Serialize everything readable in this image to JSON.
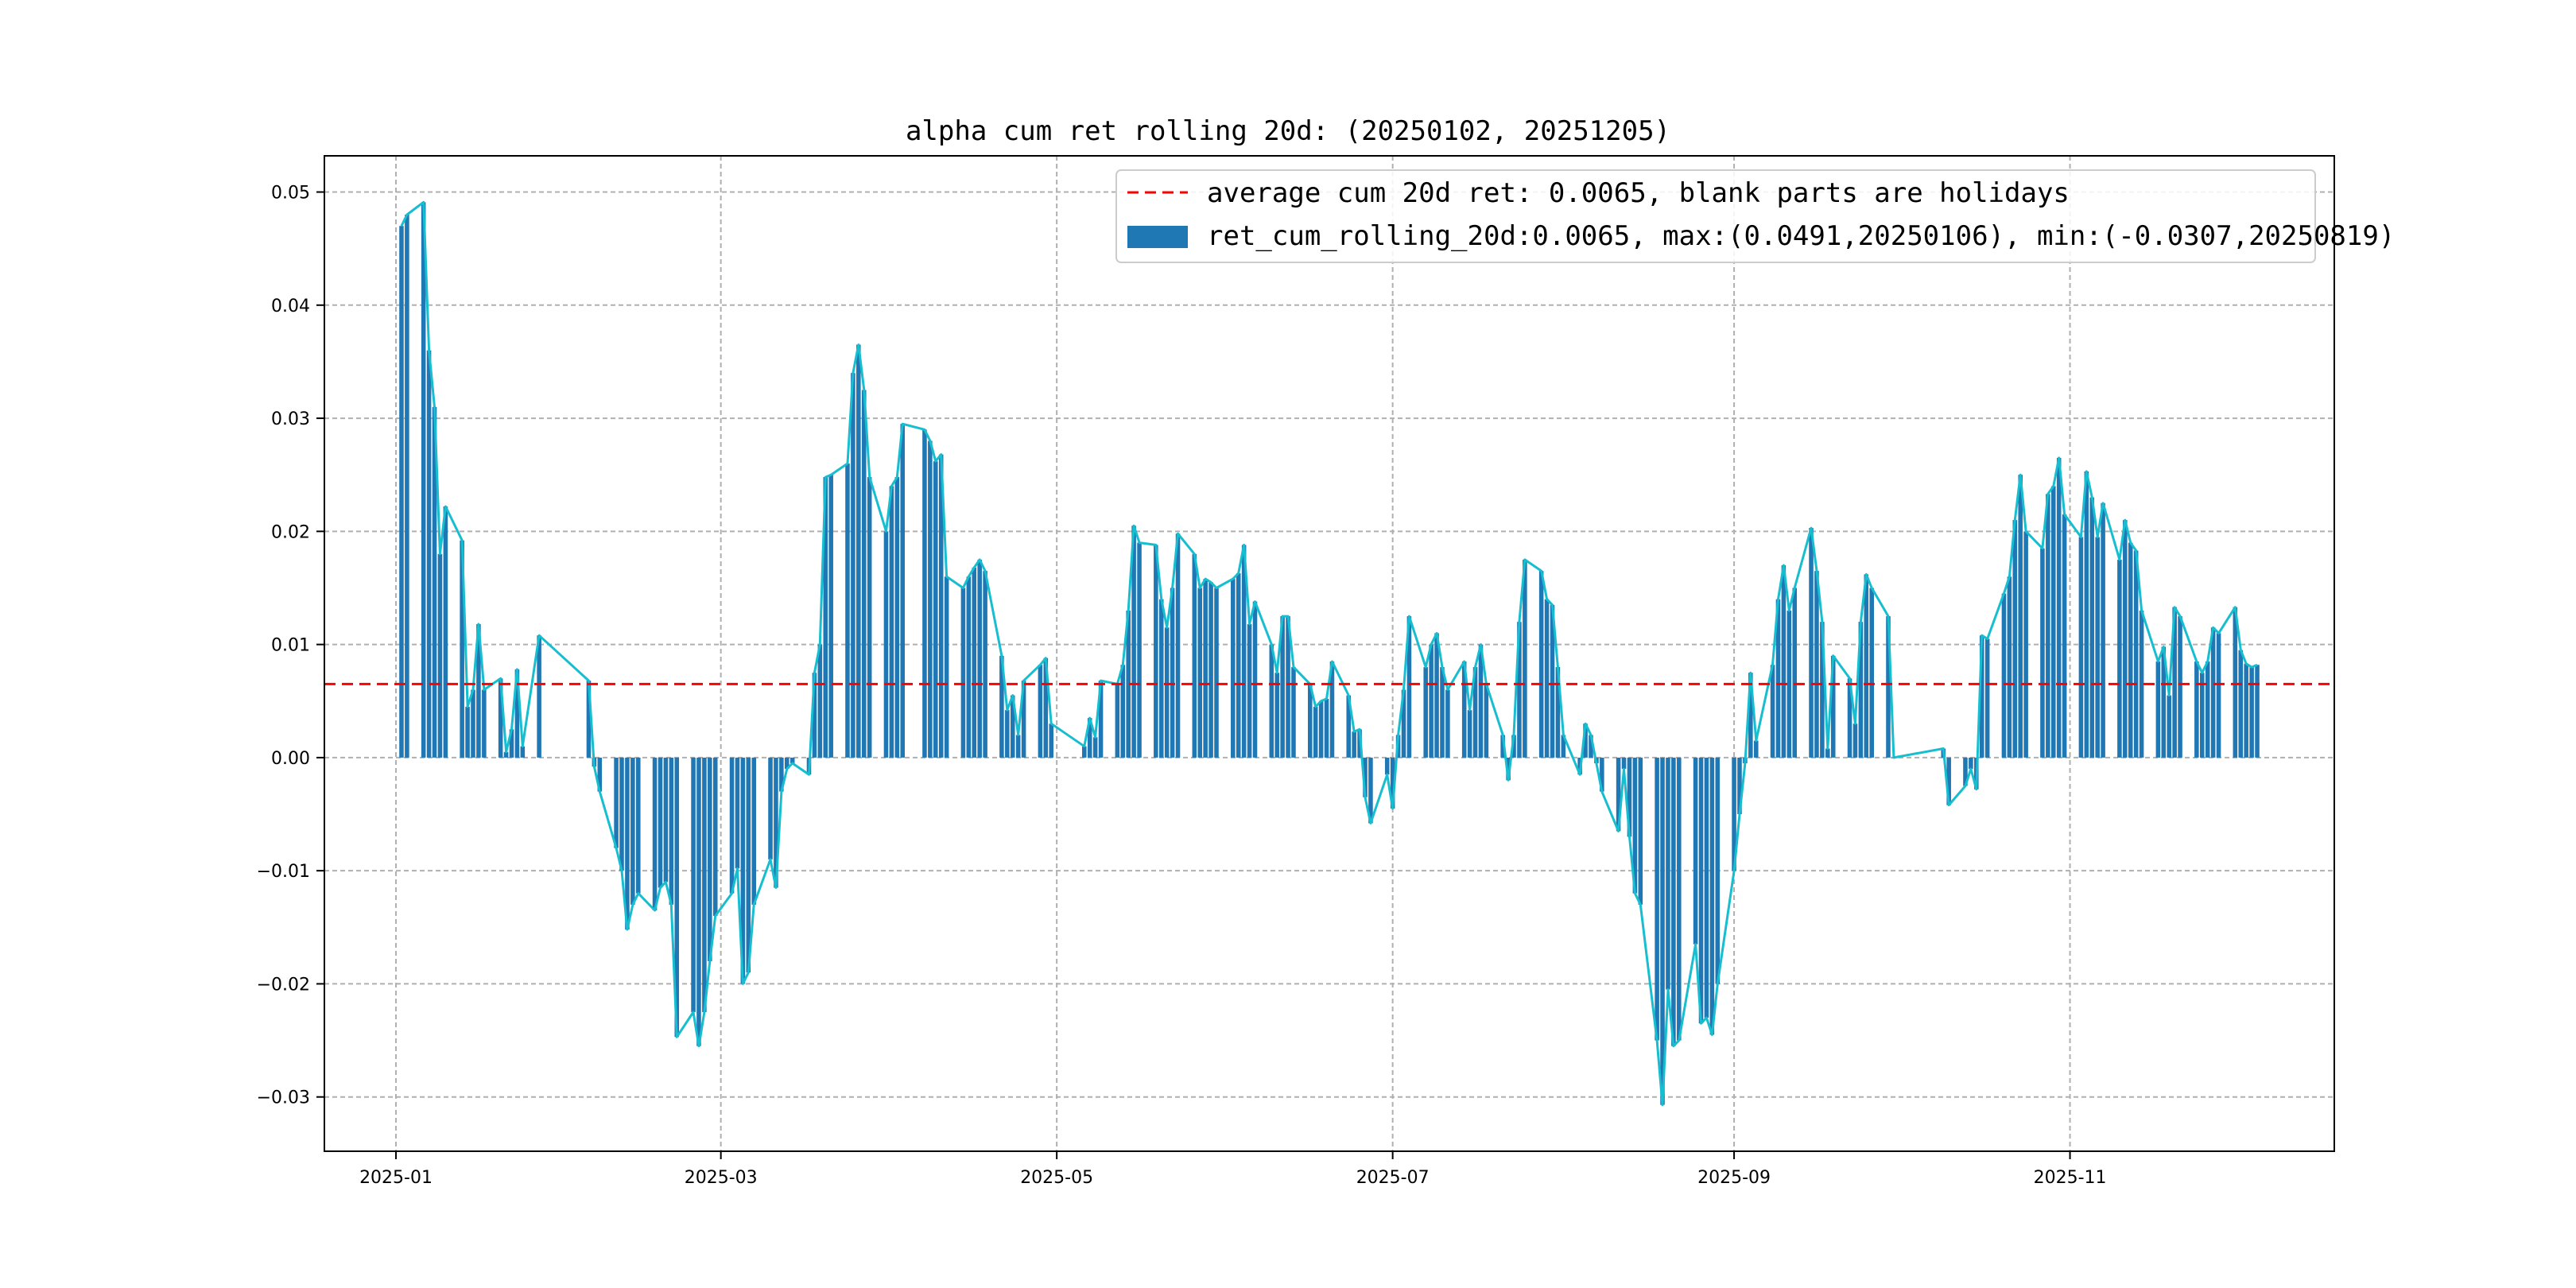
{
  "chart_data": {
    "type": "bar",
    "title": "alpha cum ret rolling 20d: (20250102, 20251205)",
    "xlabel": "",
    "ylabel": "",
    "ylim": [
      -0.0348,
      0.0532
    ],
    "yticks": [
      -0.03,
      -0.02,
      -0.01,
      0.0,
      0.01,
      0.02,
      0.03,
      0.04,
      0.05
    ],
    "ytick_labels": [
      "−0.03",
      "−0.02",
      "−0.01",
      "0.00",
      "0.01",
      "0.02",
      "0.03",
      "0.04",
      "0.05"
    ],
    "xlim": [
      "2024-12-19",
      "2025-12-19"
    ],
    "xticks": [
      "2025-01-01",
      "2025-03-01",
      "2025-05-01",
      "2025-07-01",
      "2025-09-01",
      "2025-11-01"
    ],
    "xtick_labels": [
      "2025-01",
      "2025-03",
      "2025-05",
      "2025-07",
      "2025-09",
      "2025-11"
    ],
    "grid": true,
    "legend": {
      "placement": "top-right",
      "entries": [
        {
          "label": "average cum 20d ret: 0.0065, blank parts are holidays",
          "style": "dashed-line",
          "color": "#ff0000"
        },
        {
          "label": "ret_cum_rolling_20d:0.0065, max:(0.0491,20250106), min:(-0.0307,20250819)",
          "style": "bar",
          "color": "#1f77b4"
        }
      ]
    },
    "average_line": {
      "value": 0.0065,
      "color": "#ff0000"
    },
    "bar_color": "#1f77b4",
    "line_color": "#17becf",
    "series": [
      {
        "name": "ret_cum_rolling_20d",
        "points": [
          [
            "2025-01-02",
            0.047
          ],
          [
            "2025-01-03",
            0.048
          ],
          [
            "2025-01-06",
            0.0491
          ],
          [
            "2025-01-07",
            0.036
          ],
          [
            "2025-01-08",
            0.031
          ],
          [
            "2025-01-09",
            0.018
          ],
          [
            "2025-01-10",
            0.0222
          ],
          [
            "2025-01-13",
            0.0192
          ],
          [
            "2025-01-14",
            0.0045
          ],
          [
            "2025-01-15",
            0.006
          ],
          [
            "2025-01-16",
            0.0118
          ],
          [
            "2025-01-17",
            0.006
          ],
          [
            "2025-01-20",
            0.007
          ],
          [
            "2025-01-21",
            0.0005
          ],
          [
            "2025-01-22",
            0.0025
          ],
          [
            "2025-01-23",
            0.0078
          ],
          [
            "2025-01-24",
            0.001
          ],
          [
            "2025-01-27",
            0.0108
          ],
          [
            "2025-02-05",
            0.0068
          ],
          [
            "2025-02-06",
            -0.0008
          ],
          [
            "2025-02-07",
            -0.003
          ],
          [
            "2025-02-10",
            -0.008
          ],
          [
            "2025-02-11",
            -0.01
          ],
          [
            "2025-02-12",
            -0.0152
          ],
          [
            "2025-02-13",
            -0.013
          ],
          [
            "2025-02-14",
            -0.012
          ],
          [
            "2025-02-17",
            -0.0135
          ],
          [
            "2025-02-18",
            -0.0115
          ],
          [
            "2025-02-19",
            -0.011
          ],
          [
            "2025-02-20",
            -0.013
          ],
          [
            "2025-02-21",
            -0.0247
          ],
          [
            "2025-02-24",
            -0.0225
          ],
          [
            "2025-02-25",
            -0.0255
          ],
          [
            "2025-02-26",
            -0.0225
          ],
          [
            "2025-02-27",
            -0.018
          ],
          [
            "2025-02-28",
            -0.014
          ],
          [
            "2025-03-03",
            -0.012
          ],
          [
            "2025-03-04",
            -0.0098
          ],
          [
            "2025-03-05",
            -0.02
          ],
          [
            "2025-03-06",
            -0.019
          ],
          [
            "2025-03-07",
            -0.013
          ],
          [
            "2025-03-10",
            -0.009
          ],
          [
            "2025-03-11",
            -0.0115
          ],
          [
            "2025-03-12",
            -0.003
          ],
          [
            "2025-03-13",
            -0.001
          ],
          [
            "2025-03-14",
            -0.0005
          ],
          [
            "2025-03-17",
            -0.0015
          ],
          [
            "2025-03-18",
            0.0075
          ],
          [
            "2025-03-19",
            0.01
          ],
          [
            "2025-03-20",
            0.0248
          ],
          [
            "2025-03-21",
            0.025
          ],
          [
            "2025-03-24",
            0.026
          ],
          [
            "2025-03-25",
            0.034
          ],
          [
            "2025-03-26",
            0.0365
          ],
          [
            "2025-03-27",
            0.0325
          ],
          [
            "2025-03-28",
            0.0248
          ],
          [
            "2025-03-31",
            0.02
          ],
          [
            "2025-04-01",
            0.024
          ],
          [
            "2025-04-02",
            0.0248
          ],
          [
            "2025-04-03",
            0.0295
          ],
          [
            "2025-04-07",
            0.029
          ],
          [
            "2025-04-08",
            0.028
          ],
          [
            "2025-04-09",
            0.0262
          ],
          [
            "2025-04-10",
            0.0268
          ],
          [
            "2025-04-11",
            0.016
          ],
          [
            "2025-04-14",
            0.015
          ],
          [
            "2025-04-15",
            0.016
          ],
          [
            "2025-04-16",
            0.0168
          ],
          [
            "2025-04-17",
            0.0175
          ],
          [
            "2025-04-18",
            0.0165
          ],
          [
            "2025-04-21",
            0.009
          ],
          [
            "2025-04-22",
            0.0042
          ],
          [
            "2025-04-23",
            0.0055
          ],
          [
            "2025-04-24",
            0.002
          ],
          [
            "2025-04-25",
            0.0068
          ],
          [
            "2025-04-28",
            0.0082
          ],
          [
            "2025-04-29",
            0.0088
          ],
          [
            "2025-04-30",
            0.003
          ],
          [
            "2025-05-06",
            0.001
          ],
          [
            "2025-05-07",
            0.0035
          ],
          [
            "2025-05-08",
            0.0018
          ],
          [
            "2025-05-09",
            0.0068
          ],
          [
            "2025-05-12",
            0.0065
          ],
          [
            "2025-05-13",
            0.0082
          ],
          [
            "2025-05-14",
            0.013
          ],
          [
            "2025-05-15",
            0.0205
          ],
          [
            "2025-05-16",
            0.019
          ],
          [
            "2025-05-19",
            0.0188
          ],
          [
            "2025-05-20",
            0.014
          ],
          [
            "2025-05-21",
            0.0115
          ],
          [
            "2025-05-22",
            0.015
          ],
          [
            "2025-05-23",
            0.0198
          ],
          [
            "2025-05-26",
            0.018
          ],
          [
            "2025-05-27",
            0.015
          ],
          [
            "2025-05-28",
            0.0158
          ],
          [
            "2025-05-29",
            0.0155
          ],
          [
            "2025-05-30",
            0.015
          ],
          [
            "2025-06-02",
            0.0158
          ],
          [
            "2025-06-03",
            0.0163
          ],
          [
            "2025-06-04",
            0.0188
          ],
          [
            "2025-06-05",
            0.0118
          ],
          [
            "2025-06-06",
            0.0138
          ],
          [
            "2025-06-09",
            0.01
          ],
          [
            "2025-06-10",
            0.0075
          ],
          [
            "2025-06-11",
            0.0125
          ],
          [
            "2025-06-12",
            0.0125
          ],
          [
            "2025-06-13",
            0.008
          ],
          [
            "2025-06-16",
            0.0065
          ],
          [
            "2025-06-17",
            0.0045
          ],
          [
            "2025-06-18",
            0.005
          ],
          [
            "2025-06-19",
            0.0052
          ],
          [
            "2025-06-20",
            0.0085
          ],
          [
            "2025-06-23",
            0.0055
          ],
          [
            "2025-06-24",
            0.0023
          ],
          [
            "2025-06-25",
            0.0025
          ],
          [
            "2025-06-26",
            -0.0035
          ],
          [
            "2025-06-27",
            -0.0058
          ],
          [
            "2025-06-30",
            -0.0015
          ],
          [
            "2025-07-01",
            -0.0045
          ],
          [
            "2025-07-02",
            0.002
          ],
          [
            "2025-07-03",
            0.006
          ],
          [
            "2025-07-04",
            0.0125
          ],
          [
            "2025-07-07",
            0.008
          ],
          [
            "2025-07-08",
            0.01
          ],
          [
            "2025-07-09",
            0.011
          ],
          [
            "2025-07-10",
            0.008
          ],
          [
            "2025-07-11",
            0.006
          ],
          [
            "2025-07-14",
            0.0085
          ],
          [
            "2025-07-15",
            0.0042
          ],
          [
            "2025-07-16",
            0.008
          ],
          [
            "2025-07-17",
            0.01
          ],
          [
            "2025-07-18",
            0.0065
          ],
          [
            "2025-07-21",
            0.002
          ],
          [
            "2025-07-22",
            -0.002
          ],
          [
            "2025-07-23",
            0.002
          ],
          [
            "2025-07-24",
            0.012
          ],
          [
            "2025-07-25",
            0.0175
          ],
          [
            "2025-07-28",
            0.0165
          ],
          [
            "2025-07-29",
            0.014
          ],
          [
            "2025-07-30",
            0.0135
          ],
          [
            "2025-07-31",
            0.008
          ],
          [
            "2025-08-01",
            0.002
          ],
          [
            "2025-08-04",
            -0.0015
          ],
          [
            "2025-08-05",
            0.003
          ],
          [
            "2025-08-06",
            0.002
          ],
          [
            "2025-08-07",
            -0.0005
          ],
          [
            "2025-08-08",
            -0.003
          ],
          [
            "2025-08-11",
            -0.0065
          ],
          [
            "2025-08-12",
            -0.001
          ],
          [
            "2025-08-13",
            -0.007
          ],
          [
            "2025-08-14",
            -0.012
          ],
          [
            "2025-08-15",
            -0.013
          ],
          [
            "2025-08-18",
            -0.025
          ],
          [
            "2025-08-19",
            -0.0307
          ],
          [
            "2025-08-20",
            -0.0205
          ],
          [
            "2025-08-21",
            -0.0255
          ],
          [
            "2025-08-22",
            -0.025
          ],
          [
            "2025-08-25",
            -0.0165
          ],
          [
            "2025-08-26",
            -0.0235
          ],
          [
            "2025-08-27",
            -0.023
          ],
          [
            "2025-08-28",
            -0.0245
          ],
          [
            "2025-08-29",
            -0.02
          ],
          [
            "2025-09-01",
            -0.01
          ],
          [
            "2025-09-02",
            -0.005
          ],
          [
            "2025-09-03",
            -0.0005
          ],
          [
            "2025-09-04",
            0.0075
          ],
          [
            "2025-09-05",
            0.0015
          ],
          [
            "2025-09-08",
            0.0082
          ],
          [
            "2025-09-09",
            0.014
          ],
          [
            "2025-09-10",
            0.017
          ],
          [
            "2025-09-11",
            0.013
          ],
          [
            "2025-09-12",
            0.015
          ],
          [
            "2025-09-15",
            0.0203
          ],
          [
            "2025-09-16",
            0.0165
          ],
          [
            "2025-09-17",
            0.012
          ],
          [
            "2025-09-18",
            0.0008
          ],
          [
            "2025-09-19",
            0.009
          ],
          [
            "2025-09-22",
            0.007
          ],
          [
            "2025-09-23",
            0.003
          ],
          [
            "2025-09-24",
            0.012
          ],
          [
            "2025-09-25",
            0.0162
          ],
          [
            "2025-09-26",
            0.015
          ],
          [
            "2025-09-29",
            0.0125
          ],
          [
            "2025-09-30",
            0.0
          ],
          [
            "2025-10-09",
            0.0008
          ],
          [
            "2025-10-10",
            -0.0042
          ],
          [
            "2025-10-13",
            -0.0025
          ],
          [
            "2025-10-14",
            -0.001
          ],
          [
            "2025-10-15",
            -0.0028
          ],
          [
            "2025-10-16",
            0.0108
          ],
          [
            "2025-10-17",
            0.0105
          ],
          [
            "2025-10-20",
            0.0145
          ],
          [
            "2025-10-21",
            0.016
          ],
          [
            "2025-10-22",
            0.021
          ],
          [
            "2025-10-23",
            0.025
          ],
          [
            "2025-10-24",
            0.02
          ],
          [
            "2025-10-27",
            0.0185
          ],
          [
            "2025-10-28",
            0.0233
          ],
          [
            "2025-10-29",
            0.024
          ],
          [
            "2025-10-30",
            0.0265
          ],
          [
            "2025-10-31",
            0.0215
          ],
          [
            "2025-11-03",
            0.0195
          ],
          [
            "2025-11-04",
            0.0253
          ],
          [
            "2025-11-05",
            0.023
          ],
          [
            "2025-11-06",
            0.0195
          ],
          [
            "2025-11-07",
            0.0225
          ],
          [
            "2025-11-10",
            0.0175
          ],
          [
            "2025-11-11",
            0.021
          ],
          [
            "2025-11-12",
            0.019
          ],
          [
            "2025-11-13",
            0.0183
          ],
          [
            "2025-11-14",
            0.013
          ],
          [
            "2025-11-17",
            0.0085
          ],
          [
            "2025-11-18",
            0.0098
          ],
          [
            "2025-11-19",
            0.0055
          ],
          [
            "2025-11-20",
            0.0133
          ],
          [
            "2025-11-21",
            0.0125
          ],
          [
            "2025-11-24",
            0.0085
          ],
          [
            "2025-11-25",
            0.0075
          ],
          [
            "2025-11-26",
            0.0085
          ],
          [
            "2025-11-27",
            0.0115
          ],
          [
            "2025-11-28",
            0.011
          ],
          [
            "2025-12-01",
            0.0133
          ],
          [
            "2025-12-02",
            0.0095
          ],
          [
            "2025-12-03",
            0.0083
          ],
          [
            "2025-12-04",
            0.008
          ],
          [
            "2025-12-05",
            0.0082
          ]
        ]
      }
    ]
  }
}
